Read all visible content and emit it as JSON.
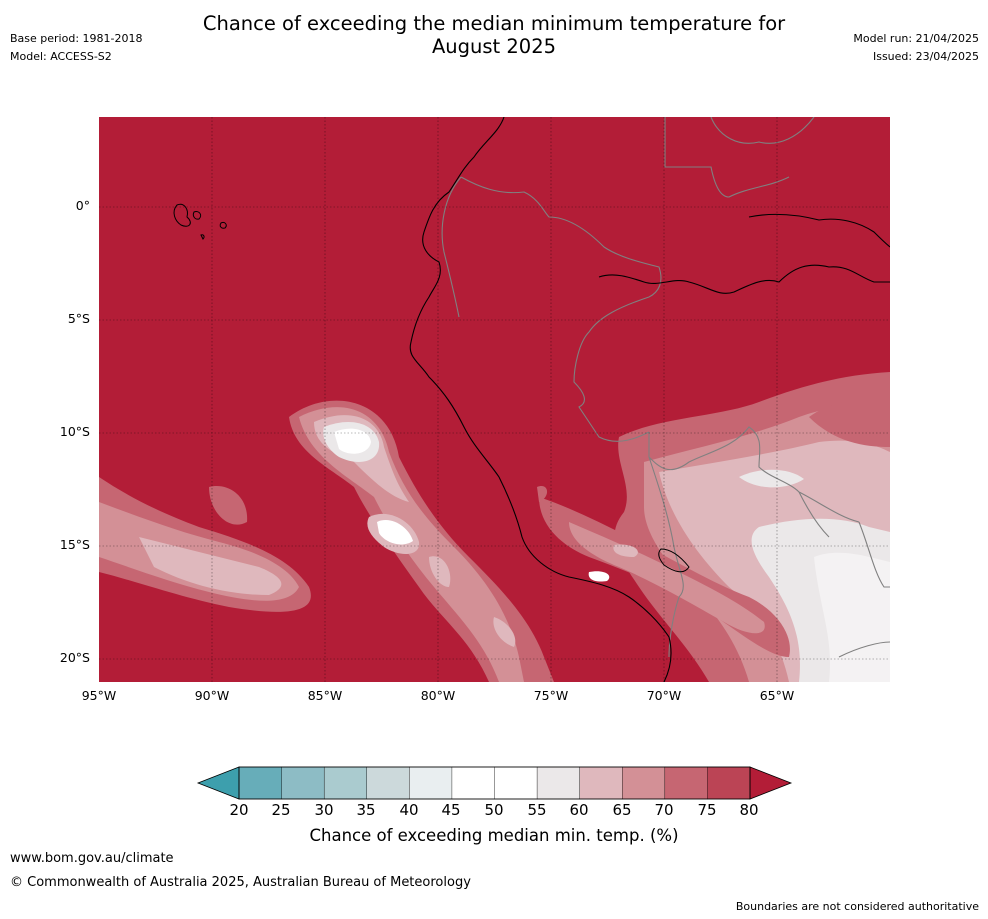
{
  "header": {
    "base_period": "Base period: 1981-2018",
    "model": "Model: ACCESS-S2",
    "title_line1": "Chance of exceeding the median minimum temperature for",
    "title_line2": "August 2025",
    "model_run": "Model run: 21/04/2025",
    "issued": "Issued: 23/04/2025"
  },
  "map": {
    "lat_labels": [
      "0°",
      "5°S",
      "10°S",
      "15°S",
      "20°S"
    ],
    "lon_labels": [
      "95°W",
      "90°W",
      "85°W",
      "80°W",
      "75°W",
      "70°W",
      "65°W"
    ],
    "background_color": "#b31d37",
    "coastline_color": "#000000",
    "border_color": "#808080"
  },
  "colorbar": {
    "labels": [
      "20",
      "25",
      "30",
      "35",
      "40",
      "45",
      "50",
      "55",
      "60",
      "65",
      "70",
      "75",
      "80"
    ],
    "colors": [
      "#67adb9",
      "#8dbcc5",
      "#aacbcf",
      "#ccd9db",
      "#e9eef0",
      "#ffffff",
      "#ffffff",
      "#ebe8e9",
      "#dfb8bd",
      "#d39096",
      "#c66672",
      "#bb4455"
    ],
    "under_color": "#3d9fad",
    "over_color": "#b31d37",
    "title": "Chance of exceeding median min. temp. (%)"
  },
  "footer": {
    "url": "www.bom.gov.au/climate",
    "copyright": "© Commonwealth of Australia 2025, Australian Bureau of Meteorology",
    "disclaimer": "Boundaries are not considered authoritative"
  }
}
